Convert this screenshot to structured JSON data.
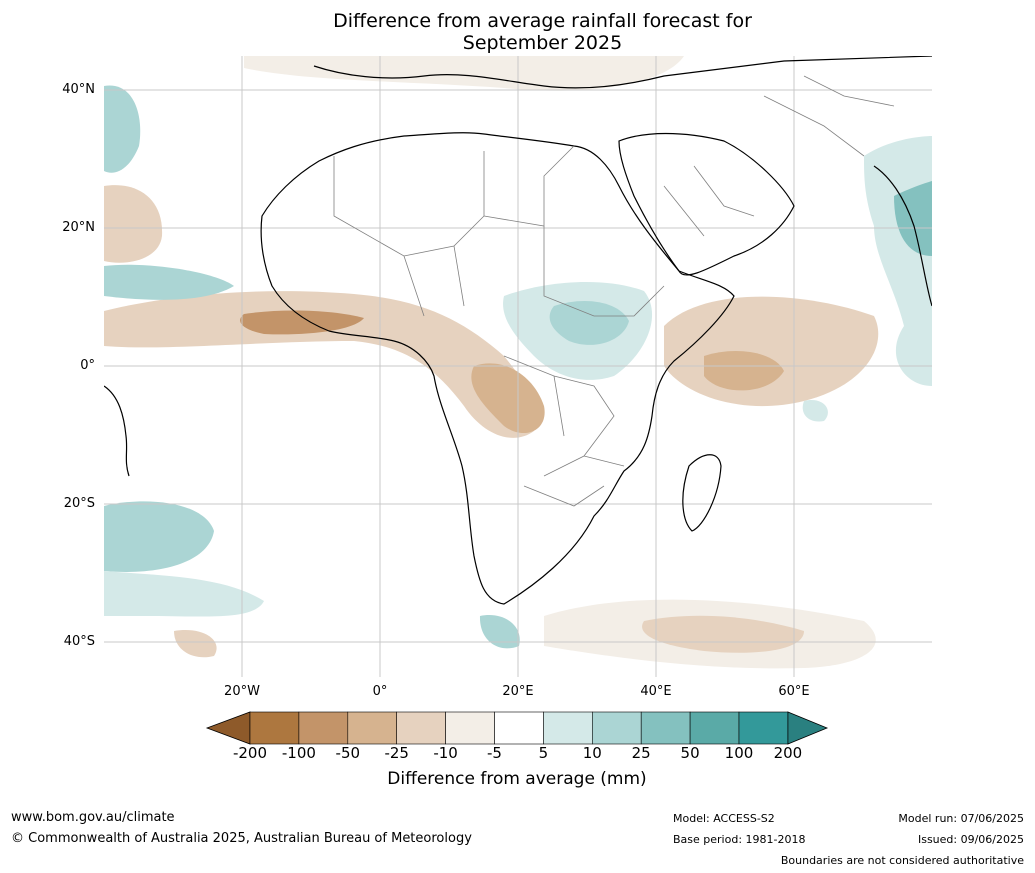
{
  "title_line1": "Difference from average rainfall forecast for",
  "title_line2": "September 2025",
  "lat_labels": [
    "40°N",
    "20°N",
    "0°",
    "20°S",
    "40°S"
  ],
  "lon_labels": [
    "20°W",
    "0°",
    "20°E",
    "40°E",
    "60°E"
  ],
  "colorbar": {
    "ticks": [
      "-200",
      "-100",
      "-50",
      "-25",
      "-10",
      "-5",
      "5",
      "10",
      "25",
      "50",
      "100",
      "200"
    ],
    "colors": [
      "#8e5a2a",
      "#ad773f",
      "#c39469",
      "#d6b38f",
      "#e6d2bf",
      "#f3eee7",
      "#ffffff",
      "#d4e9e8",
      "#abd5d4",
      "#84c1bf",
      "#5aaaa7",
      "#33999a",
      "#2a8080"
    ],
    "title": "Difference from average (mm)"
  },
  "footer": {
    "url": "www.bom.gov.au/climate",
    "copyright": "© Commonwealth of Australia 2025, Australian Bureau of Meteorology",
    "model": "Model: ACCESS-S2",
    "base_period": "Base period: 1981-2018",
    "model_run": "Model run: 07/06/2025",
    "issued": "Issued: 09/06/2025",
    "disclaimer": "Boundaries are not considered authoritative"
  }
}
